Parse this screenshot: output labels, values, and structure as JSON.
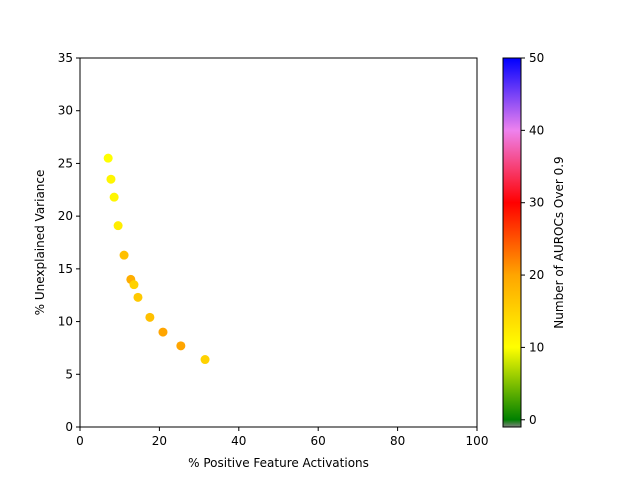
{
  "chart_data": {
    "type": "scatter",
    "title": "",
    "xlabel": "% Positive Feature Activations",
    "ylabel": "% Unexplained Variance",
    "xlim": [
      0,
      100
    ],
    "ylim": [
      0,
      35
    ],
    "xticks": [
      0,
      20,
      40,
      60,
      80,
      100
    ],
    "yticks": [
      0,
      5,
      10,
      15,
      20,
      25,
      30,
      35
    ],
    "grid": false,
    "points": [
      {
        "x": 7.1,
        "y": 25.5,
        "c": 10
      },
      {
        "x": 7.8,
        "y": 23.5,
        "c": 11
      },
      {
        "x": 8.6,
        "y": 21.8,
        "c": 11
      },
      {
        "x": 9.6,
        "y": 19.1,
        "c": 12
      },
      {
        "x": 11.1,
        "y": 16.3,
        "c": 17
      },
      {
        "x": 12.8,
        "y": 14.0,
        "c": 19
      },
      {
        "x": 13.6,
        "y": 13.5,
        "c": 15
      },
      {
        "x": 14.6,
        "y": 12.3,
        "c": 16
      },
      {
        "x": 17.6,
        "y": 10.4,
        "c": 17
      },
      {
        "x": 20.9,
        "y": 9.0,
        "c": 20
      },
      {
        "x": 25.4,
        "y": 7.7,
        "c": 20
      },
      {
        "x": 31.5,
        "y": 6.4,
        "c": 15
      }
    ],
    "colorbar": {
      "label": "Number of AUROCs Over 0.9",
      "range": [
        -1,
        50
      ],
      "ticks": [
        0,
        10,
        20,
        30,
        40,
        50
      ],
      "stops": [
        {
          "v": -1,
          "color": "#808080"
        },
        {
          "v": 0,
          "color": "#008000"
        },
        {
          "v": 10,
          "color": "#ffff00"
        },
        {
          "v": 20,
          "color": "#ffa500"
        },
        {
          "v": 30,
          "color": "#ff0000"
        },
        {
          "v": 40,
          "color": "#ee82ee"
        },
        {
          "v": 50,
          "color": "#0000ff"
        }
      ]
    }
  }
}
